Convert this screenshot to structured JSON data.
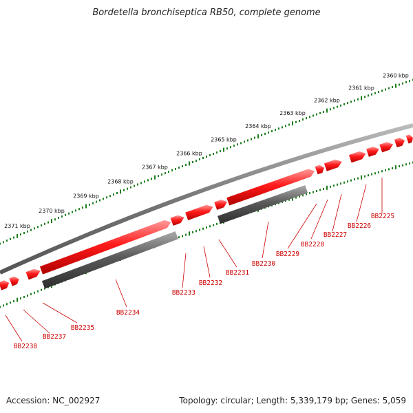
{
  "title": "Bordetella bronchiseptica RB50, complete genome",
  "footer": {
    "accession": "Accession: NC_002927",
    "summary": "Topology: circular; Length: 5,339,179 bp; Genes: 5,059"
  },
  "colors": {
    "gene_forward": "#ff2020",
    "gene_reverse": "#555555",
    "backbone": "#777777",
    "tick": "#1f7f1f",
    "label": "#cc0000"
  },
  "ruler_labels": [
    "2360 kbp",
    "2361 kbp",
    "2362 kbp",
    "2363 kbp",
    "2364 kbp",
    "2365 kbp",
    "2366 kbp",
    "2367 kbp",
    "2368 kbp",
    "2369 kbp",
    "2370 kbp",
    "2371 kbp"
  ],
  "genes": [
    "BB2225",
    "BB2226",
    "BB2227",
    "BB2228",
    "BB2229",
    "BB2230",
    "BB2231",
    "BB2232",
    "BB2233",
    "BB2234",
    "BB2235",
    "BB2237",
    "BB2238"
  ]
}
